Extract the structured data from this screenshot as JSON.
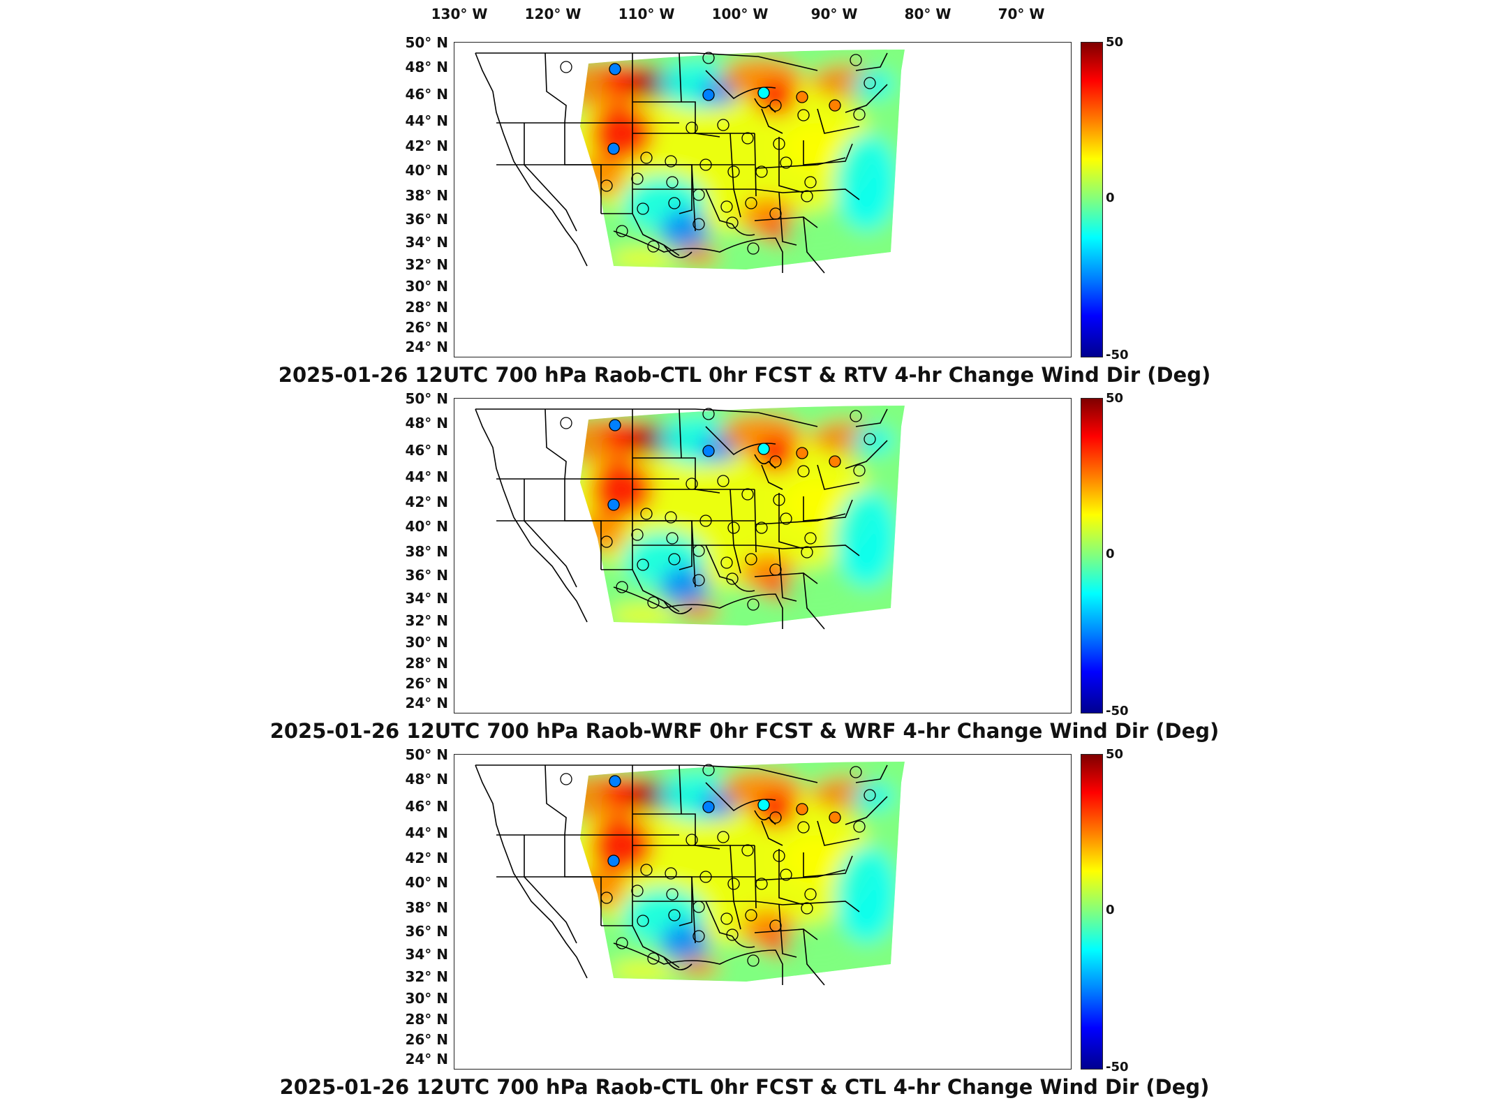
{
  "lon_labels": [
    "130° W",
    "120° W",
    "110° W",
    "100° W",
    "90° W",
    "80° W",
    "70° W"
  ],
  "lat_labels": [
    "50° N",
    "48° N",
    "46° N",
    "44° N",
    "42° N",
    "40° N",
    "38° N",
    "36° N",
    "34° N",
    "32° N",
    "30° N",
    "28° N",
    "26° N",
    "24° N"
  ],
  "colorbar": {
    "max": "50",
    "mid": "0",
    "min": "-50",
    "colors": [
      "#7f0000",
      "#ff0000",
      "#ff8000",
      "#ffff00",
      "#80ff80",
      "#00ffff",
      "#0080ff",
      "#0000ff",
      "#00008f"
    ]
  },
  "panels": [
    {
      "title": "2025-01-26 12UTC 700 hPa Raob-CTL 0hr FCST & RTV 4-hr Change Wind Dir (Deg)"
    },
    {
      "title": "2025-01-26 12UTC 700 hPa Raob-WRF 0hr FCST & WRF 4-hr Change Wind Dir (Deg)"
    },
    {
      "title": "2025-01-26 12UTC 700 hPa Raob-CTL 0hr FCST & CTL 4-hr Change Wind Dir (Deg)"
    }
  ]
}
